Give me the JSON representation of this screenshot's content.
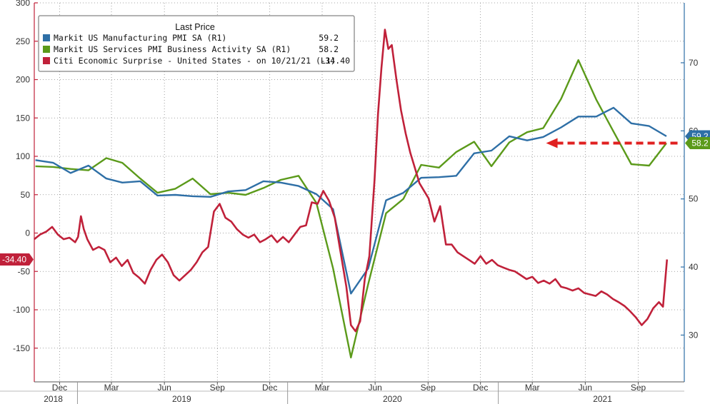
{
  "chart_data": {
    "type": "line",
    "title": "",
    "legend": {
      "title": "Last Price",
      "placement": "top-left",
      "entries": [
        {
          "name": "Markit US Manufacturing PMI SA  (R1)",
          "value": "59.2",
          "color": "#2e6fa6"
        },
        {
          "name": "Markit US Services PMI Business Activity SA  (R1)",
          "value": "58.2",
          "color": "#5b9a1a"
        },
        {
          "name": "Citi Economic Surprise - United States -  on 10/21/21  (L1)",
          "value": "-34.40",
          "color": "#c0213a"
        }
      ]
    },
    "left_axis": {
      "ylim": [
        -180,
        300
      ],
      "ticks": [
        -150,
        -100,
        -50,
        0,
        50,
        100,
        150,
        200,
        250,
        300
      ],
      "tick_labels": [
        "-150",
        "-100",
        "-50",
        "0",
        "50",
        "100",
        "150",
        "200",
        "250",
        "300"
      ],
      "color": "#c0213a"
    },
    "right_axis": {
      "ylim": [
        24.7,
        78.8
      ],
      "ticks": [
        30,
        40,
        50,
        60,
        70
      ],
      "tick_labels": [
        "30",
        "40",
        "50",
        "60",
        "70"
      ],
      "color": "#2e6fa6"
    },
    "x_axis": {
      "range": [
        "2018-10-18",
        "2021-11-20"
      ],
      "month_ticks": [
        {
          "date": "2018-12-01",
          "label": "Dec"
        },
        {
          "date": "2019-03-01",
          "label": "Mar"
        },
        {
          "date": "2019-06-01",
          "label": "Jun"
        },
        {
          "date": "2019-09-01",
          "label": "Sep"
        },
        {
          "date": "2019-12-01",
          "label": "Dec"
        },
        {
          "date": "2020-03-01",
          "label": "Mar"
        },
        {
          "date": "2020-06-01",
          "label": "Jun"
        },
        {
          "date": "2020-09-01",
          "label": "Sep"
        },
        {
          "date": "2020-12-01",
          "label": "Dec"
        },
        {
          "date": "2021-03-01",
          "label": "Mar"
        },
        {
          "date": "2021-06-01",
          "label": "Jun"
        },
        {
          "date": "2021-09-01",
          "label": "Sep"
        }
      ],
      "year_labels": [
        {
          "date": "2018-11-20",
          "label": "2018"
        },
        {
          "date": "2019-07-01",
          "label": "2019"
        },
        {
          "date": "2020-07-01",
          "label": "2020"
        },
        {
          "date": "2021-07-01",
          "label": "2021"
        }
      ],
      "year_boundaries": [
        "2019-01-01",
        "2020-01-01",
        "2021-01-01"
      ]
    },
    "grid": true,
    "last_value_tags": [
      {
        "series": "Markit US Manufacturing PMI SA  (R1)",
        "label": "59.2",
        "axis": "right",
        "value": 59.2,
        "color": "#2e6fa6"
      },
      {
        "series": "Markit US Services PMI Business Activity SA  (R1)",
        "label": "58.2",
        "axis": "right",
        "value": 58.2,
        "color": "#5b9a1a"
      },
      {
        "series": "Citi Economic Surprise - United States -  on 10/21/21  (L1)",
        "label": "-34.40",
        "axis": "left",
        "value": -34.4,
        "color": "#c0213a"
      }
    ],
    "series": [
      {
        "name": "Markit US Manufacturing PMI SA  (R1)",
        "axis": "right",
        "color": "#2e6fa6",
        "x": [
          "2018-10-20",
          "2018-11-20",
          "2018-12-20",
          "2019-01-20",
          "2019-02-20",
          "2019-03-20",
          "2019-04-20",
          "2019-05-20",
          "2019-06-20",
          "2019-07-20",
          "2019-08-20",
          "2019-09-20",
          "2019-10-20",
          "2019-11-20",
          "2019-12-20",
          "2020-01-20",
          "2020-02-20",
          "2020-03-20",
          "2020-04-20",
          "2020-05-20",
          "2020-06-20",
          "2020-07-20",
          "2020-08-20",
          "2020-09-20",
          "2020-10-20",
          "2020-11-20",
          "2020-12-20",
          "2021-01-20",
          "2021-02-20",
          "2021-03-20",
          "2021-04-20",
          "2021-05-20",
          "2021-06-20",
          "2021-07-20",
          "2021-08-20",
          "2021-09-20",
          "2021-10-20"
        ],
        "values": [
          55.7,
          55.3,
          53.8,
          54.9,
          53.0,
          52.4,
          52.6,
          50.5,
          50.6,
          50.4,
          50.3,
          51.1,
          51.3,
          52.6,
          52.4,
          51.9,
          50.7,
          48.5,
          36.1,
          39.8,
          49.8,
          50.9,
          53.1,
          53.2,
          53.4,
          56.7,
          57.1,
          59.2,
          58.6,
          59.1,
          60.5,
          62.1,
          62.1,
          63.4,
          61.1,
          60.7,
          59.2
        ]
      },
      {
        "name": "Markit US Services PMI Business Activity SA  (R1)",
        "axis": "right",
        "color": "#5b9a1a",
        "x": [
          "2018-10-20",
          "2018-11-20",
          "2018-12-20",
          "2019-01-20",
          "2019-02-20",
          "2019-03-20",
          "2019-04-20",
          "2019-05-20",
          "2019-06-20",
          "2019-07-20",
          "2019-08-20",
          "2019-09-20",
          "2019-10-20",
          "2019-11-20",
          "2019-12-20",
          "2020-01-20",
          "2020-02-20",
          "2020-03-20",
          "2020-04-20",
          "2020-05-20",
          "2020-06-20",
          "2020-07-20",
          "2020-08-20",
          "2020-09-20",
          "2020-10-20",
          "2020-11-20",
          "2020-12-20",
          "2021-01-20",
          "2021-02-20",
          "2021-03-20",
          "2021-04-20",
          "2021-05-20",
          "2021-06-20",
          "2021-07-20",
          "2021-08-20",
          "2021-09-20",
          "2021-10-20"
        ],
        "values": [
          54.8,
          54.7,
          54.4,
          54.2,
          56.0,
          55.3,
          53.0,
          50.9,
          51.5,
          53.0,
          50.7,
          50.9,
          50.6,
          51.6,
          52.8,
          53.4,
          49.4,
          39.8,
          26.7,
          37.5,
          47.9,
          50.0,
          55.0,
          54.6,
          56.9,
          58.4,
          54.8,
          58.3,
          59.8,
          60.4,
          64.7,
          70.4,
          64.6,
          59.9,
          55.1,
          54.9,
          58.2
        ]
      },
      {
        "name": "Citi Economic Surprise - United States -  on 10/21/21  (L1)",
        "axis": "left",
        "color": "#c0213a",
        "x": [
          "2018-10-18",
          "2018-10-28",
          "2018-11-08",
          "2018-11-18",
          "2018-11-28",
          "2018-12-08",
          "2018-12-18",
          "2018-12-28",
          "2019-01-02",
          "2019-01-07",
          "2019-01-12",
          "2019-01-18",
          "2019-01-28",
          "2019-02-07",
          "2019-02-17",
          "2019-02-27",
          "2019-03-09",
          "2019-03-19",
          "2019-03-29",
          "2019-04-08",
          "2019-04-18",
          "2019-04-28",
          "2019-05-08",
          "2019-05-18",
          "2019-05-28",
          "2019-06-07",
          "2019-06-17",
          "2019-06-27",
          "2019-07-07",
          "2019-07-17",
          "2019-07-27",
          "2019-08-06",
          "2019-08-16",
          "2019-08-26",
          "2019-09-05",
          "2019-09-15",
          "2019-09-25",
          "2019-10-05",
          "2019-10-15",
          "2019-10-25",
          "2019-11-04",
          "2019-11-14",
          "2019-11-24",
          "2019-12-04",
          "2019-12-14",
          "2019-12-24",
          "2020-01-03",
          "2020-01-13",
          "2020-01-23",
          "2020-02-02",
          "2020-02-12",
          "2020-02-22",
          "2020-03-03",
          "2020-03-13",
          "2020-03-23",
          "2020-04-02",
          "2020-04-12",
          "2020-04-20",
          "2020-04-28",
          "2020-05-06",
          "2020-05-14",
          "2020-05-22",
          "2020-05-31",
          "2020-06-06",
          "2020-06-12",
          "2020-06-18",
          "2020-06-24",
          "2020-06-30",
          "2020-07-08",
          "2020-07-16",
          "2020-07-24",
          "2020-08-01",
          "2020-08-09",
          "2020-08-17",
          "2020-08-25",
          "2020-09-02",
          "2020-09-12",
          "2020-09-22",
          "2020-10-02",
          "2020-10-12",
          "2020-10-22",
          "2020-11-01",
          "2020-11-11",
          "2020-11-21",
          "2020-12-01",
          "2020-12-11",
          "2020-12-21",
          "2020-12-31",
          "2021-01-10",
          "2021-01-20",
          "2021-01-30",
          "2021-02-09",
          "2021-02-19",
          "2021-03-01",
          "2021-03-11",
          "2021-03-21",
          "2021-03-31",
          "2021-04-10",
          "2021-04-20",
          "2021-04-30",
          "2021-05-10",
          "2021-05-20",
          "2021-05-30",
          "2021-06-09",
          "2021-06-19",
          "2021-06-29",
          "2021-07-09",
          "2021-07-19",
          "2021-07-29",
          "2021-08-08",
          "2021-08-18",
          "2021-08-28",
          "2021-09-07",
          "2021-09-17",
          "2021-09-27",
          "2021-10-07",
          "2021-10-14",
          "2021-10-21"
        ],
        "values": [
          -8,
          -2,
          2,
          8,
          -2,
          -8,
          -6,
          -12,
          -5,
          22,
          5,
          -8,
          -22,
          -18,
          -22,
          -38,
          -32,
          -43,
          -35,
          -52,
          -58,
          -66,
          -48,
          -35,
          -28,
          -38,
          -55,
          -62,
          -55,
          -48,
          -38,
          -25,
          -18,
          28,
          38,
          20,
          15,
          5,
          -2,
          -6,
          -2,
          -12,
          -8,
          -3,
          -12,
          -5,
          -12,
          -2,
          8,
          10,
          40,
          38,
          55,
          42,
          20,
          -25,
          -70,
          -120,
          -128,
          -115,
          -60,
          -30,
          70,
          155,
          215,
          265,
          240,
          245,
          200,
          160,
          130,
          105,
          85,
          65,
          55,
          45,
          15,
          35,
          -15,
          -15,
          -25,
          -30,
          -35,
          -40,
          -30,
          -40,
          -35,
          -42,
          -45,
          -48,
          -50,
          -55,
          -60,
          -57,
          -65,
          -62,
          -66,
          -60,
          -70,
          -72,
          -75,
          -72,
          -78,
          -80,
          -82,
          -76,
          -80,
          -86,
          -90,
          -95,
          -102,
          -110,
          -120,
          -112,
          -98,
          -90,
          -96,
          -34.4
        ]
      }
    ]
  }
}
